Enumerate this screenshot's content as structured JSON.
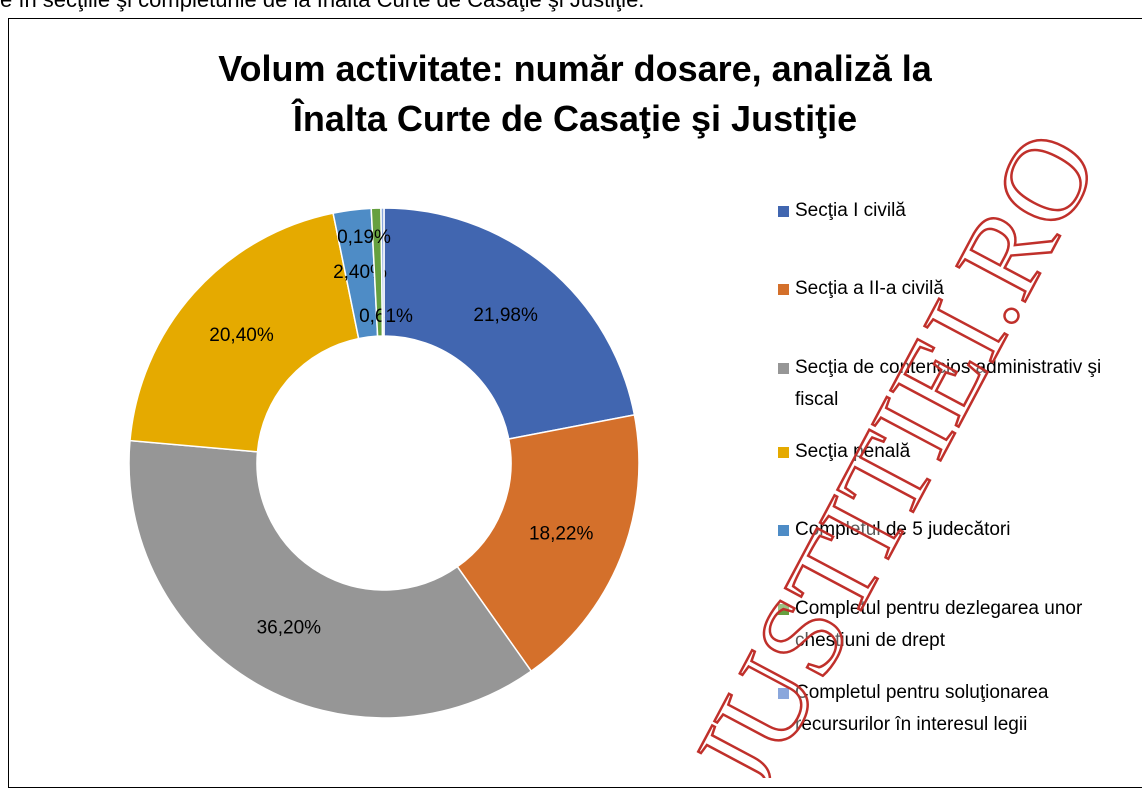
{
  "caption": "e în secţiile şi completurile de la Înalta Curte de Casaţie şi Justiţie.",
  "watermark": "JUSTITIEI.RO",
  "chart_data": {
    "type": "donut",
    "title": "Volum activitate: număr dosare, analiză la Înalta Curte de Casaţie şi Justiţie",
    "categories": [
      "Secţia I civilă",
      "Secţia a II-a civilă",
      "Secţia de contencios administrativ şi fiscal",
      "Secţia penală",
      "Completul de 5 judecători",
      "Completul pentru dezlegarea unor chestiuni de drept",
      "Completul pentru soluţionarea recursurilor în interesul legii"
    ],
    "values": [
      21.98,
      18.22,
      36.2,
      20.4,
      2.4,
      0.61,
      0.19
    ],
    "value_labels": [
      "21,98%",
      "18,22%",
      "36,20%",
      "20,40%",
      "2,40%",
      "0,61%",
      "0,19%"
    ],
    "colors": [
      "#4166b0",
      "#d4702b",
      "#969696",
      "#e5aa00",
      "#4e8cc6",
      "#66a03f",
      "#8aa7dc"
    ],
    "legend": "right"
  }
}
